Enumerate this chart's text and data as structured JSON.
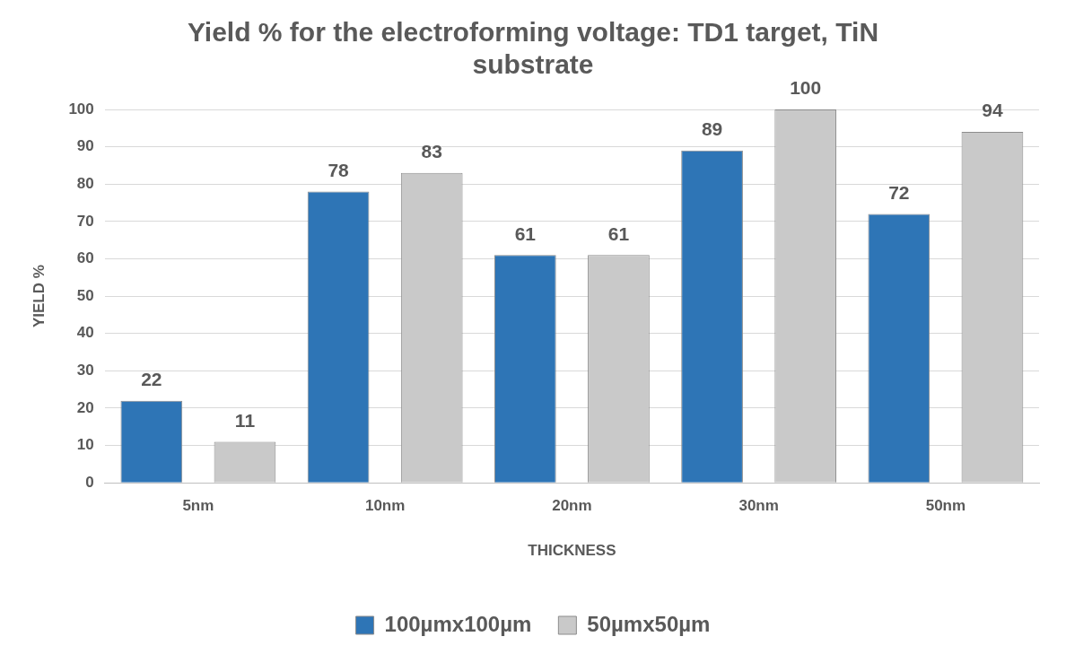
{
  "chart_data": {
    "type": "bar",
    "title": "Yield % for the electroforming voltage: TD1 target, TiN substrate",
    "xlabel": "THICKNESS",
    "ylabel": "YIELD %",
    "categories": [
      "5nm",
      "10nm",
      "20nm",
      "30nm",
      "50nm"
    ],
    "series": [
      {
        "name": "100µmx100µm",
        "color": "#2e75b6",
        "values": [
          22,
          78,
          61,
          89,
          72
        ]
      },
      {
        "name": "50µmx50µm",
        "color": "#c9c9c9",
        "values": [
          11,
          83,
          61,
          100,
          94
        ]
      }
    ],
    "ylim": [
      0,
      100
    ],
    "yticks": [
      0,
      10,
      20,
      30,
      40,
      50,
      60,
      70,
      80,
      90,
      100
    ],
    "grid": "y",
    "legend": "bottom",
    "data_labels": true
  }
}
